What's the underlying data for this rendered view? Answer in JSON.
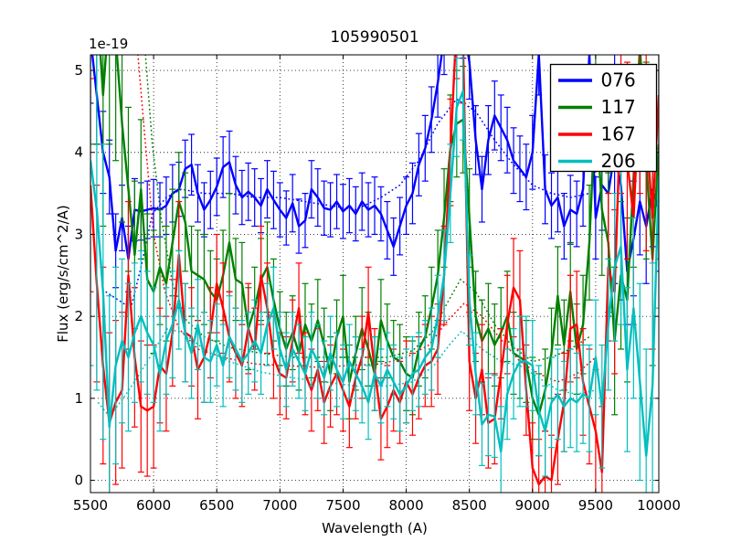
{
  "chart_data": {
    "type": "line",
    "title": "105990501",
    "xlabel": "Wavelength (A)",
    "ylabel": "Flux (erg/s/cm^2/A)",
    "y_offset_text": "1e-19",
    "xlim": [
      5500,
      10000
    ],
    "ylim": [
      -0.15,
      5.19
    ],
    "xticks": [
      5500,
      6000,
      6500,
      7000,
      7500,
      8000,
      8500,
      9000,
      9500,
      10000
    ],
    "yticks": [
      0,
      1,
      2,
      3,
      4,
      5
    ],
    "grid": true,
    "grid_style": "dotted",
    "legend_position": "upper right",
    "legend": [
      {
        "label": "076",
        "color": "#0000ff"
      },
      {
        "label": "117",
        "color": "#008000"
      },
      {
        "label": "167",
        "color": "#ff0000"
      },
      {
        "label": "206",
        "color": "#00bfbf"
      }
    ],
    "x_start": 5500,
    "x_step": 50,
    "series": [
      {
        "name": "076",
        "color": "#0000ff",
        "style": "solid",
        "values": [
          5.4,
          4.7,
          4.0,
          3.7,
          2.8,
          3.2,
          2.7,
          3.3,
          3.28,
          3.3,
          3.32,
          3.3,
          3.35,
          3.5,
          3.55,
          3.8,
          3.85,
          3.5,
          3.3,
          3.42,
          3.58,
          3.82,
          3.88,
          3.6,
          3.45,
          3.52,
          3.45,
          3.35,
          3.55,
          3.42,
          3.3,
          3.2,
          3.38,
          3.1,
          3.17,
          3.55,
          3.45,
          3.32,
          3.3,
          3.4,
          3.28,
          3.35,
          3.25,
          3.4,
          3.3,
          3.35,
          3.25,
          3.05,
          2.85,
          3.1,
          3.35,
          3.5,
          3.85,
          4.05,
          4.4,
          4.85,
          5.4,
          5.8,
          5.9,
          5.6,
          5.1,
          4.15,
          3.55,
          4.15,
          4.45,
          4.3,
          4.15,
          3.9,
          3.8,
          3.7,
          4.0,
          5.2,
          3.55,
          3.35,
          3.45,
          3.1,
          3.3,
          3.25,
          3.55,
          5.2,
          3.2,
          3.6,
          3.5,
          4.0,
          3.6,
          2.55,
          2.95,
          3.4,
          3.1,
          3.55,
          3.3
        ],
        "err": [
          0.8,
          0.6,
          0.5,
          0.45,
          0.45,
          0.4,
          0.4,
          0.38,
          0.35,
          0.35,
          0.35,
          0.33,
          0.35,
          0.35,
          0.33,
          0.35,
          0.37,
          0.35,
          0.33,
          0.35,
          0.35,
          0.37,
          0.38,
          0.35,
          0.33,
          0.35,
          0.35,
          0.33,
          0.35,
          0.35,
          0.33,
          0.33,
          0.35,
          0.33,
          0.33,
          0.35,
          0.35,
          0.33,
          0.33,
          0.33,
          0.33,
          0.33,
          0.33,
          0.35,
          0.33,
          0.35,
          0.33,
          0.35,
          0.35,
          0.35,
          0.35,
          0.37,
          0.38,
          0.4,
          0.4,
          0.42,
          0.45,
          0.45,
          0.45,
          0.45,
          0.45,
          0.42,
          0.4,
          0.42,
          0.42,
          0.4,
          0.4,
          0.4,
          0.4,
          0.4,
          0.45,
          0.5,
          0.42,
          0.4,
          0.42,
          0.4,
          0.42,
          0.4,
          0.45,
          0.55,
          0.5,
          0.55,
          1.5,
          1.6,
          1.4,
          0.65,
          0.7,
          0.65,
          0.7,
          0.7,
          0.75
        ]
      },
      {
        "name": "117",
        "color": "#008000",
        "style": "solid",
        "values": [
          5.6,
          5.9,
          4.7,
          5.8,
          5.4,
          4.35,
          3.55,
          2.75,
          3.55,
          2.45,
          2.3,
          2.6,
          2.4,
          2.9,
          3.4,
          3.15,
          2.55,
          2.5,
          2.45,
          2.3,
          2.2,
          2.5,
          2.9,
          2.45,
          2.4,
          1.85,
          2.1,
          2.45,
          2.6,
          2.2,
          1.85,
          1.6,
          1.8,
          1.55,
          1.9,
          1.7,
          1.95,
          1.65,
          1.3,
          1.75,
          2.0,
          1.2,
          1.55,
          1.85,
          1.6,
          1.3,
          1.95,
          1.7,
          1.5,
          1.45,
          1.3,
          1.25,
          1.6,
          1.75,
          2.1,
          2.5,
          3.2,
          4.05,
          4.35,
          4.4,
          3.2,
          2.0,
          1.7,
          1.85,
          1.65,
          1.8,
          2.0,
          1.55,
          1.5,
          1.45,
          1.0,
          0.8,
          1.1,
          1.55,
          2.25,
          1.65,
          2.3,
          1.6,
          1.9,
          2.9,
          4.6,
          3.3,
          2.9,
          1.7,
          2.5,
          2.2,
          3.7,
          5.3,
          3.9,
          2.7,
          4.1
        ],
        "err": [
          1.5,
          1.8,
          1.6,
          1.7,
          1.5,
          1.2,
          1.0,
          0.9,
          0.85,
          0.8,
          0.75,
          0.7,
          0.7,
          0.65,
          0.6,
          0.6,
          0.55,
          0.55,
          0.55,
          0.5,
          0.5,
          0.55,
          0.6,
          0.5,
          0.5,
          0.5,
          0.5,
          0.5,
          0.55,
          0.5,
          0.45,
          0.45,
          0.45,
          0.45,
          0.5,
          0.45,
          0.5,
          0.45,
          0.45,
          0.45,
          0.5,
          0.45,
          0.45,
          0.5,
          0.45,
          0.45,
          0.5,
          0.45,
          0.45,
          0.45,
          0.45,
          0.45,
          0.45,
          0.5,
          0.5,
          0.55,
          0.6,
          0.65,
          0.65,
          0.65,
          0.6,
          0.55,
          0.5,
          0.55,
          0.5,
          0.55,
          0.55,
          0.5,
          0.5,
          0.5,
          0.5,
          0.5,
          0.5,
          0.55,
          0.6,
          0.55,
          0.6,
          0.55,
          0.6,
          0.7,
          0.8,
          0.8,
          0.85,
          0.9,
          0.9,
          1.0,
          1.1,
          1.2,
          1.2,
          1.3,
          1.4
        ]
      },
      {
        "name": "167",
        "color": "#ff0000",
        "style": "solid",
        "values": [
          3.6,
          2.4,
          1.4,
          0.7,
          0.95,
          1.1,
          2.5,
          1.5,
          0.9,
          0.85,
          0.9,
          1.4,
          1.3,
          1.8,
          2.75,
          1.8,
          1.75,
          1.35,
          1.5,
          1.8,
          2.4,
          2.1,
          1.75,
          1.55,
          1.4,
          1.85,
          1.6,
          2.5,
          2.1,
          1.5,
          1.3,
          1.25,
          1.7,
          2.1,
          1.3,
          1.1,
          1.35,
          0.95,
          1.15,
          1.3,
          1.1,
          0.9,
          1.25,
          1.5,
          2.05,
          1.35,
          0.75,
          0.9,
          1.1,
          0.95,
          1.2,
          1.05,
          1.25,
          1.4,
          1.45,
          1.6,
          2.5,
          4.0,
          5.6,
          5.3,
          1.45,
          1.0,
          1.35,
          0.7,
          0.75,
          1.3,
          1.9,
          2.35,
          2.2,
          1.1,
          0.15,
          -0.05,
          0.05,
          0.0,
          0.5,
          0.95,
          1.85,
          1.9,
          1.2,
          0.9,
          0.6,
          0.1,
          2.6,
          2.3,
          4.6,
          3.9,
          3.2,
          4.9,
          4.3,
          3.2,
          4.7
        ],
        "err": [
          1.3,
          1.2,
          1.2,
          1.1,
          1.0,
          0.95,
          0.9,
          0.85,
          0.8,
          0.8,
          0.75,
          0.7,
          0.7,
          0.65,
          0.65,
          0.6,
          0.6,
          0.6,
          0.55,
          0.55,
          0.6,
          0.55,
          0.55,
          0.55,
          0.5,
          0.55,
          0.5,
          0.6,
          0.55,
          0.5,
          0.5,
          0.5,
          0.5,
          0.55,
          0.5,
          0.5,
          0.5,
          0.5,
          0.5,
          0.5,
          0.5,
          0.5,
          0.5,
          0.5,
          0.55,
          0.5,
          0.5,
          0.5,
          0.5,
          0.5,
          0.5,
          0.5,
          0.5,
          0.5,
          0.55,
          0.55,
          0.6,
          0.65,
          0.7,
          0.7,
          0.6,
          0.55,
          0.55,
          0.55,
          0.55,
          0.55,
          0.6,
          0.6,
          0.6,
          0.55,
          0.55,
          0.55,
          0.55,
          0.55,
          0.55,
          0.6,
          0.65,
          0.65,
          0.65,
          0.7,
          0.75,
          0.8,
          0.9,
          1.0,
          1.1,
          1.2,
          1.3,
          1.4,
          1.5,
          1.6,
          1.7
        ]
      },
      {
        "name": "206",
        "color": "#00bfbf",
        "style": "solid",
        "values": [
          3.9,
          3.3,
          2.3,
          0.65,
          1.4,
          1.7,
          1.5,
          1.8,
          2.0,
          1.8,
          1.65,
          1.3,
          1.7,
          1.9,
          2.2,
          1.8,
          1.55,
          1.9,
          1.5,
          1.45,
          1.65,
          1.4,
          1.75,
          1.6,
          1.45,
          1.55,
          1.7,
          1.55,
          1.9,
          2.1,
          1.6,
          1.35,
          1.6,
          1.45,
          1.3,
          1.6,
          1.45,
          1.25,
          1.55,
          1.35,
          1.2,
          1.45,
          1.3,
          1.15,
          0.95,
          1.3,
          1.15,
          1.35,
          1.2,
          1.05,
          1.15,
          1.3,
          1.35,
          1.5,
          1.6,
          2.0,
          2.5,
          3.5,
          4.55,
          4.75,
          2.2,
          1.3,
          0.68,
          0.8,
          0.78,
          0.35,
          1.05,
          1.3,
          1.45,
          1.45,
          1.4,
          0.85,
          0.6,
          0.95,
          1.05,
          0.9,
          1.0,
          0.95,
          1.05,
          1.0,
          1.5,
          0.9,
          1.9,
          2.6,
          2.85,
          1.35,
          2.1,
          1.2,
          0.3,
          1.15,
          3.7
        ],
        "err": [
          2.5,
          2.2,
          1.8,
          1.6,
          1.2,
          1.0,
          0.9,
          0.85,
          0.8,
          0.75,
          0.7,
          0.7,
          0.65,
          0.65,
          0.6,
          0.6,
          0.55,
          0.55,
          0.55,
          0.5,
          0.5,
          0.5,
          0.5,
          0.5,
          0.5,
          0.5,
          0.5,
          0.5,
          0.5,
          0.5,
          0.45,
          0.45,
          0.45,
          0.45,
          0.45,
          0.45,
          0.45,
          0.45,
          0.45,
          0.45,
          0.45,
          0.45,
          0.45,
          0.45,
          0.45,
          0.45,
          0.45,
          0.45,
          0.45,
          0.45,
          0.45,
          0.45,
          0.45,
          0.45,
          0.5,
          0.5,
          0.55,
          0.6,
          0.6,
          0.6,
          0.55,
          0.5,
          0.5,
          0.5,
          0.5,
          0.55,
          0.55,
          0.55,
          0.55,
          0.55,
          0.55,
          0.55,
          0.55,
          0.55,
          0.55,
          0.55,
          0.6,
          0.6,
          0.6,
          0.65,
          0.7,
          0.75,
          0.8,
          0.9,
          0.95,
          1.0,
          1.1,
          1.2,
          1.3,
          1.5,
          1.6
        ]
      }
    ],
    "smoothed_series": [
      {
        "name": "076-smoothed",
        "color": "#0000ff",
        "style": "dotted",
        "x": [
          5620,
          5720,
          5820,
          5900,
          5990,
          6100,
          6220,
          6400,
          6600,
          6800,
          7000,
          7200,
          7400,
          7600,
          7800,
          7950,
          8100,
          8250,
          8400,
          8550,
          8700,
          8850,
          9000,
          9150,
          9300,
          9450
        ],
        "values": [
          2.3,
          2.2,
          2.1,
          2.6,
          3.25,
          3.45,
          3.55,
          3.5,
          3.5,
          3.45,
          3.45,
          3.4,
          3.35,
          3.3,
          3.45,
          3.6,
          3.9,
          4.35,
          4.65,
          4.5,
          4.15,
          3.85,
          3.6,
          3.5,
          3.45,
          3.5
        ]
      },
      {
        "name": "117-smoothed",
        "color": "#008000",
        "style": "dotted",
        "x": [
          5930,
          5990,
          6060,
          6150,
          6260,
          6400,
          6600,
          6850,
          7100,
          7350,
          7600,
          7850,
          8050,
          8200,
          8320,
          8430,
          8550,
          8700,
          8850,
          9000,
          9150,
          9300,
          9450
        ],
        "values": [
          5.3,
          4.1,
          3.2,
          2.4,
          1.95,
          1.75,
          1.62,
          1.55,
          1.5,
          1.5,
          1.5,
          1.5,
          1.58,
          1.8,
          2.15,
          2.45,
          2.3,
          1.9,
          1.62,
          1.45,
          1.5,
          1.6,
          1.75
        ]
      },
      {
        "name": "167-smoothed",
        "color": "#ff0000",
        "style": "dotted",
        "x": [
          5870,
          5930,
          6000,
          6090,
          6200,
          6350,
          6550,
          6800,
          7050,
          7300,
          7550,
          7800,
          8000,
          8180,
          8330,
          8460,
          8600,
          8750,
          8900,
          9050,
          9200,
          9350,
          9500
        ],
        "values": [
          5.3,
          4.2,
          3.0,
          2.3,
          1.85,
          1.6,
          1.5,
          1.42,
          1.4,
          1.38,
          1.4,
          1.42,
          1.5,
          1.65,
          1.95,
          2.16,
          2.0,
          1.72,
          1.45,
          1.3,
          1.2,
          1.3,
          1.5
        ]
      },
      {
        "name": "206-smoothed",
        "color": "#00bfbf",
        "style": "dotted",
        "x": [
          5560,
          5650,
          5760,
          5870,
          5990,
          6110,
          6230,
          6400,
          6600,
          6850,
          7100,
          7350,
          7600,
          7850,
          8050,
          8220,
          8340,
          8440,
          8600,
          8750,
          8900,
          9050,
          9200,
          9350,
          9500
        ],
        "values": [
          0.95,
          0.78,
          1.0,
          1.25,
          1.55,
          1.85,
          1.8,
          1.6,
          1.45,
          1.32,
          1.25,
          1.2,
          1.15,
          1.15,
          1.2,
          1.4,
          1.65,
          1.82,
          1.6,
          1.45,
          1.4,
          1.25,
          1.1,
          1.05,
          1.1
        ]
      }
    ]
  }
}
